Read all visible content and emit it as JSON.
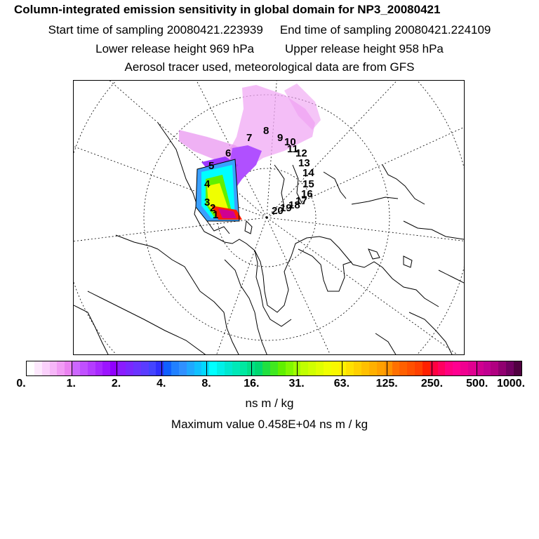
{
  "title": "Column-integrated emission sensitivity in global domain for NP3_20080421",
  "start_label": "Start time of sampling 20080421.223939",
  "end_label": "End time of sampling 20080421.224109",
  "lower_label": "Lower release height  969 hPa",
  "upper_label": "Upper release height  958 hPa",
  "aerosol_label": "Aerosol tracer used, meteorological data are from GFS",
  "track_labels": [
    "1",
    "2",
    "3",
    "4",
    "5",
    "6",
    "7",
    "8",
    "9",
    "10",
    "11",
    "12",
    "13",
    "14",
    "15",
    "16",
    "17",
    "18",
    "19",
    "20"
  ],
  "colorbar": {
    "ticks": [
      "0.",
      "1.",
      "2.",
      "4.",
      "8.",
      "16.",
      "31.",
      "63.",
      "125.",
      "250.",
      "500.",
      "1000."
    ],
    "colors": [
      "#ffffff",
      "#fde8fd",
      "#fad0fb",
      "#f6b6f8",
      "#f19cf4",
      "#ea82f0",
      "#cc66ff",
      "#c050ff",
      "#b43cff",
      "#a828ff",
      "#9c14ff",
      "#9000ff",
      "#8a1cff",
      "#7a28ff",
      "#6a34ff",
      "#5a3cff",
      "#4444ff",
      "#3030ff",
      "#1060ff",
      "#2080ff",
      "#3090ff",
      "#20a8ff",
      "#10c0ff",
      "#00d8ff",
      "#00ffff",
      "#00f0e8",
      "#00e8d0",
      "#00e8b8",
      "#00e8a0",
      "#00e088",
      "#00d870",
      "#20e040",
      "#40e820",
      "#60f000",
      "#80f800",
      "#a0ff00",
      "#c0ff00",
      "#d0ff00",
      "#e0ff00",
      "#f0ff00",
      "#f8f800",
      "#fff000",
      "#ffe000",
      "#ffd000",
      "#ffc000",
      "#ffb000",
      "#ffa000",
      "#ff9000",
      "#ff7000",
      "#ff6000",
      "#ff5000",
      "#ff4000",
      "#ff2000",
      "#ff0040",
      "#ff0060",
      "#ff0080",
      "#ff0090",
      "#f00090",
      "#e00090",
      "#d00090",
      "#c00090",
      "#b00080",
      "#900070",
      "#700060",
      "#500040"
    ]
  },
  "units": "ns m / kg",
  "max_value_label": "Maximum value  0.458E+04 ns m / kg"
}
